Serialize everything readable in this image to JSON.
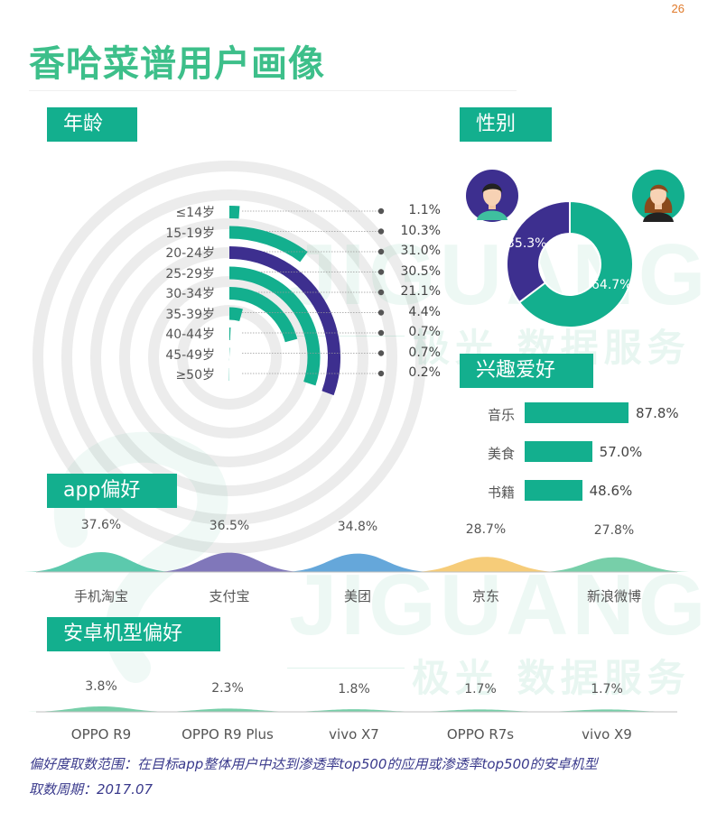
{
  "page_number": "26",
  "title": "香哈菜谱用户画像",
  "watermark": {
    "latin": "JIGUANG",
    "chinese": "极光 数据服务"
  },
  "sections": {
    "age": "年龄",
    "gender": "性别",
    "interest": "兴趣爱好",
    "app": "app偏好",
    "phone": "安卓机型偏好"
  },
  "colors": {
    "teal": "#13af8e",
    "purple": "#3d2f8f",
    "title_green": "#3dbf8a",
    "note_purple": "#3a3a8c"
  },
  "chart_data": [
    {
      "id": "age",
      "type": "bar",
      "form": "radial",
      "categories": [
        "≤14岁",
        "15-19岁",
        "20-24岁",
        "25-29岁",
        "30-34岁",
        "35-39岁",
        "40-44岁",
        "45-49岁",
        "≥50岁"
      ],
      "values": [
        1.1,
        10.3,
        31.0,
        30.5,
        21.1,
        4.4,
        0.7,
        0.7,
        0.2
      ],
      "labels": [
        "1.1%",
        "10.3%",
        "31.0%",
        "30.5%",
        "21.1%",
        "4.4%",
        "0.7%",
        "0.7%",
        "0.2%"
      ],
      "highlight_index": 2,
      "unit": "%"
    },
    {
      "id": "gender",
      "type": "pie",
      "form": "donut",
      "slices": [
        {
          "label": "35.3%",
          "value": 35.3,
          "color": "#3d2f8f",
          "icon": "male-avatar-icon"
        },
        {
          "label": "64.7%",
          "value": 64.7,
          "color": "#13af8e",
          "icon": "female-avatar-icon"
        }
      ]
    },
    {
      "id": "interest",
      "type": "bar",
      "orientation": "horizontal",
      "categories": [
        "音乐",
        "美食",
        "书籍"
      ],
      "values": [
        87.8,
        57.0,
        48.6
      ],
      "labels": [
        "87.8%",
        "57.0%",
        "48.6%"
      ]
    },
    {
      "id": "app",
      "type": "area",
      "categories": [
        "手机淘宝",
        "支付宝",
        "美团",
        "京东",
        "新浪微博"
      ],
      "values": [
        37.6,
        36.5,
        34.8,
        28.7,
        27.8
      ],
      "labels": [
        "37.6%",
        "36.5%",
        "34.8%",
        "28.7%",
        "27.8%"
      ],
      "colors": [
        "#3fbf9f",
        "#6a5fae",
        "#4a98d4",
        "#f5c361",
        "#5fc79a"
      ]
    },
    {
      "id": "phone",
      "type": "area",
      "categories": [
        "OPPO R9",
        "OPPO R9 Plus",
        "vivo X7",
        "OPPO R7s",
        "vivo X9"
      ],
      "values": [
        3.8,
        2.3,
        1.8,
        1.7,
        1.7
      ],
      "labels": [
        "3.8%",
        "2.3%",
        "1.8%",
        "1.7%",
        "1.7%"
      ],
      "color": "#5fc79a"
    }
  ],
  "notes": {
    "line1": "偏好度取数范围：在目标app整体用户中达到渗透率top500的应用或渗透率top500的安卓机型",
    "line2": "取数周期：2017.07"
  }
}
